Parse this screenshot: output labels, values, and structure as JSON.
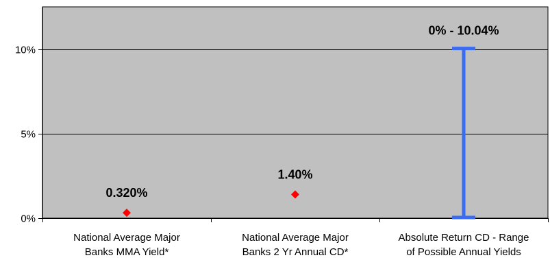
{
  "chart_data": {
    "type": "scatter",
    "title": "",
    "xlabel": "",
    "ylabel": "",
    "ylim": [
      0,
      12.5
    ],
    "y_ticks": [
      {
        "value": 0,
        "label": "0%"
      },
      {
        "value": 5,
        "label": "5%"
      },
      {
        "value": 10,
        "label": "10%"
      }
    ],
    "grid": true,
    "legend": "none",
    "categories": [
      {
        "line1": "National Average Major",
        "line2": "Banks MMA Yield*"
      },
      {
        "line1": "National Average Major",
        "line2": "Banks 2 Yr Annual CD*"
      },
      {
        "line1": "Absolute Return CD - Range",
        "line2": "of Possible Annual Yields"
      }
    ],
    "points": [
      {
        "category_index": 0,
        "value": 0.32,
        "label": "0.320%"
      },
      {
        "category_index": 1,
        "value": 1.4,
        "label": "1.40%"
      }
    ],
    "range": {
      "category_index": 2,
      "low": 0,
      "high": 10.04,
      "label": "0% - 10.04%"
    },
    "colors": {
      "plot_background": "#c0c0c0",
      "gridline": "#000000",
      "marker": "#ff0000",
      "range_bar": "#3a6bf0",
      "axis": "#000000"
    }
  }
}
